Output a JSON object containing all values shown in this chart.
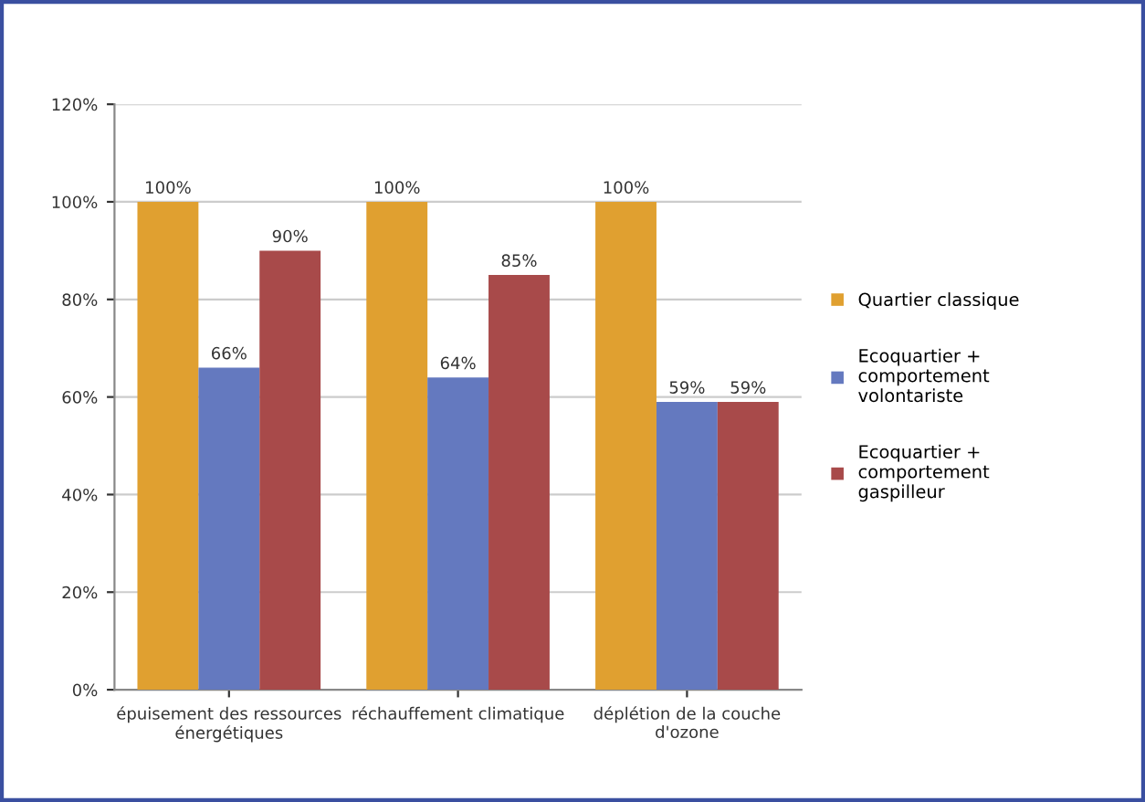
{
  "chart_data": {
    "type": "bar",
    "categories": [
      "épuisement des ressources\nénergétiques",
      "réchauffement climatique",
      "déplétion de la couche\nd'ozone"
    ],
    "series": [
      {
        "name": "Quartier classique",
        "color": "#e0a030",
        "values": [
          100,
          100,
          100
        ],
        "value_labels": [
          "100%",
          "100%",
          "100%"
        ]
      },
      {
        "name": "Ecoquartier +\ncomportement\nvolontariste",
        "color": "#6479bf",
        "values": [
          66,
          64,
          59
        ],
        "value_labels": [
          "66%",
          "64%",
          "59%"
        ]
      },
      {
        "name": "Ecoquartier +\ncomportement\ngaspilleur",
        "color": "#a84a4a",
        "values": [
          90,
          85,
          59
        ],
        "value_labels": [
          "90%",
          "85%",
          "59%"
        ]
      }
    ],
    "ylim": [
      0,
      120
    ],
    "yticks": [
      {
        "value": 0,
        "label": "0%"
      },
      {
        "value": 20,
        "label": "20%"
      },
      {
        "value": 40,
        "label": "40%"
      },
      {
        "value": 60,
        "label": "60%"
      },
      {
        "value": 80,
        "label": "80%"
      },
      {
        "value": 100,
        "label": "100%"
      },
      {
        "value": 120,
        "label": "120%"
      }
    ],
    "grid": "y",
    "legend": "right"
  }
}
